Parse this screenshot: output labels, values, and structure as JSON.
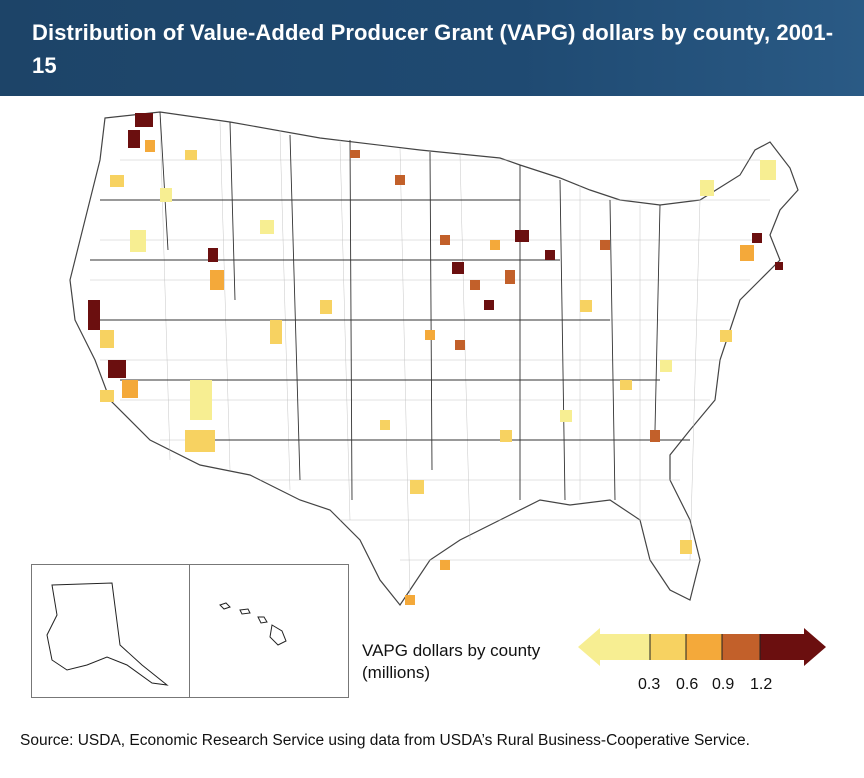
{
  "title": "Distribution of Value-Added Producer Grant (VAPG) dollars by county, 2001-15",
  "legend": {
    "label_line1": "VAPG dollars by county",
    "label_line2": "(millions)",
    "ticks": [
      "0.3",
      "0.6",
      "0.9",
      "1.2"
    ],
    "colors": [
      "#f7ee92",
      "#f7d261",
      "#f4a93a",
      "#c2602a",
      "#6b0f0f"
    ]
  },
  "source": "Source: USDA, Economic Research Service using data from USDA’s Rural Business-Cooperative Service."
}
